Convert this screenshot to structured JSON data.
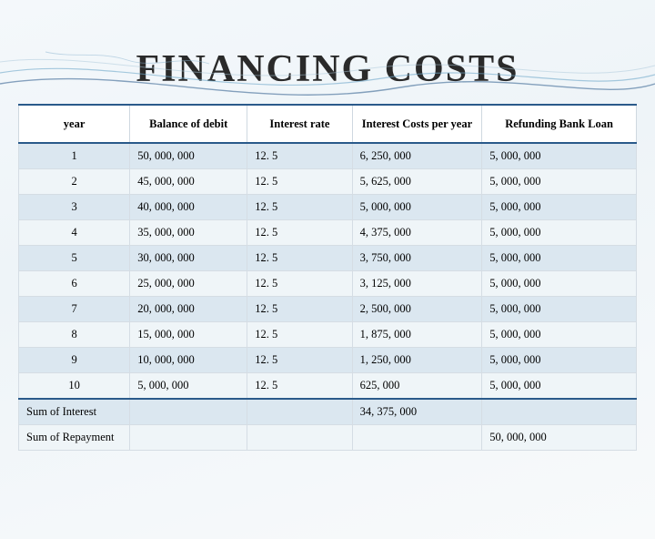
{
  "title_html": "F<span class='sm'>INANCING</span>  C<span class='sm'>OSTS</span>",
  "title_plain": "FINANCING  COSTS",
  "headers": {
    "year": "year",
    "balance": "Balance of debit",
    "rate": "Interest  rate",
    "cost": "Interest Costs per  year",
    "refund": "Refunding Bank Loan"
  },
  "rows": [
    {
      "year": "1",
      "balance": "50, 000, 000",
      "rate": "12. 5",
      "cost": "6, 250, 000",
      "refund": "5, 000, 000"
    },
    {
      "year": "2",
      "balance": "45, 000, 000",
      "rate": "12. 5",
      "cost": "5, 625, 000",
      "refund": "5, 000, 000"
    },
    {
      "year": "3",
      "balance": "40, 000, 000",
      "rate": "12. 5",
      "cost": "5, 000, 000",
      "refund": "5, 000, 000"
    },
    {
      "year": "4",
      "balance": "35, 000, 000",
      "rate": "12. 5",
      "cost": "4, 375, 000",
      "refund": "5, 000, 000"
    },
    {
      "year": "5",
      "balance": "30, 000, 000",
      "rate": "12. 5",
      "cost": "3, 750, 000",
      "refund": "5, 000, 000"
    },
    {
      "year": "6",
      "balance": "25, 000, 000",
      "rate": "12. 5",
      "cost": "3, 125, 000",
      "refund": "5, 000, 000"
    },
    {
      "year": "7",
      "balance": "20, 000, 000",
      "rate": "12. 5",
      "cost": "2, 500, 000",
      "refund": "5, 000, 000"
    },
    {
      "year": "8",
      "balance": "15, 000, 000",
      "rate": "12. 5",
      "cost": "1, 875, 000",
      "refund": "5, 000, 000"
    },
    {
      "year": "9",
      "balance": "10, 000, 000",
      "rate": "12. 5",
      "cost": "1, 250, 000",
      "refund": "5, 000, 000"
    },
    {
      "year": "10",
      "balance": "5, 000, 000",
      "rate": "12. 5",
      "cost": "625, 000",
      "refund": "5, 000, 000"
    }
  ],
  "sums": {
    "interest_label": "Sum  of Interest",
    "interest_value": "34, 375, 000",
    "repay_label": "Sum  of Repayment",
    "repay_value": "50, 000, 000"
  },
  "style": {
    "row_odd_bg": "#dbe7f0",
    "row_even_bg": "#eff5f8",
    "header_border": "#2a5a8a",
    "cell_border": "#d5dde4",
    "title_color": "#2a2a2a",
    "background_gradient": [
      "#f4f8fb",
      "#eef4f8",
      "#f8fafb"
    ],
    "font_family": "Georgia / Times New Roman serif",
    "title_fontsize_pt": 40,
    "body_fontsize_pt": 12.5,
    "column_widths_pct": {
      "year": 18,
      "balance": 19,
      "rate": 17,
      "cost": 21,
      "refund": 25
    }
  }
}
